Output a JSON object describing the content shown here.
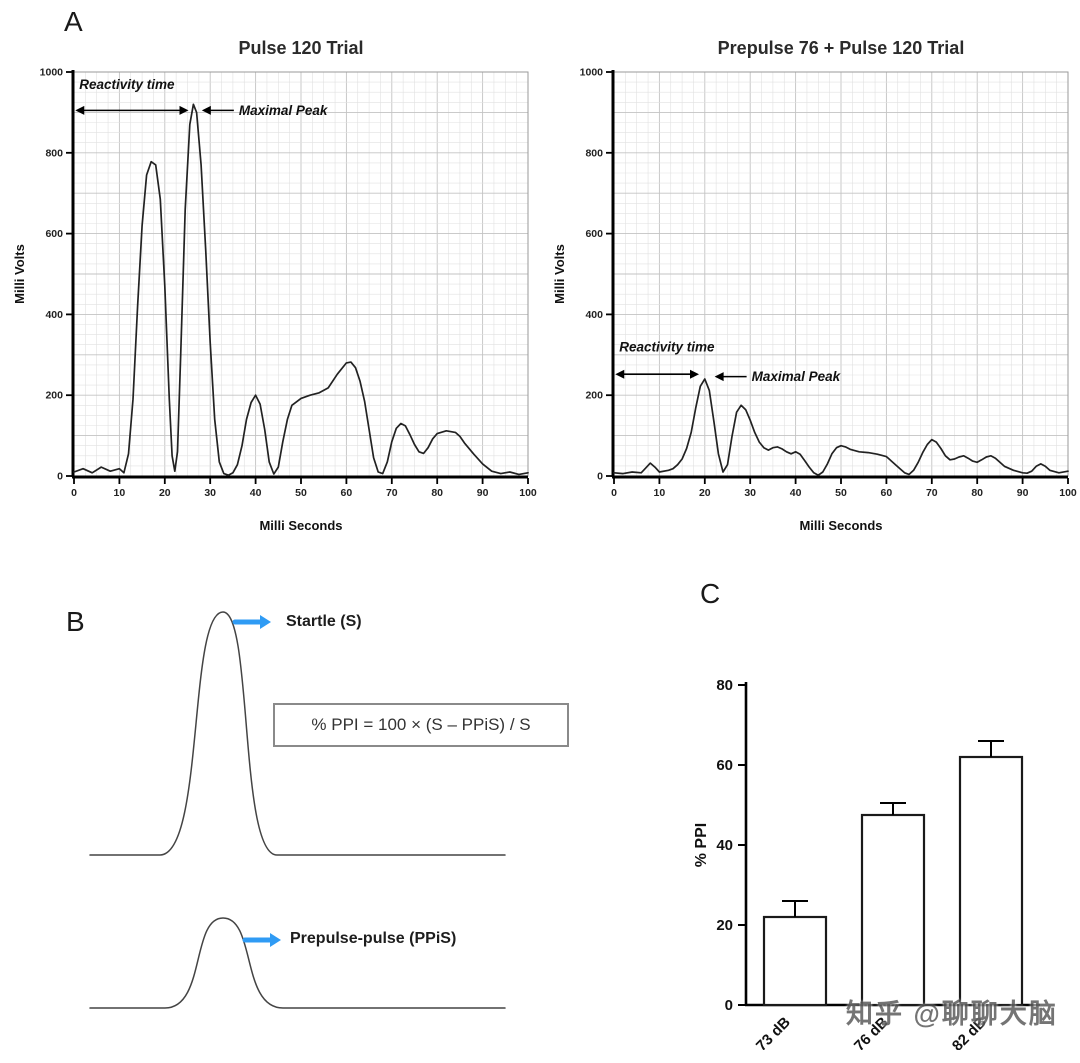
{
  "panels": {
    "a_label": "A",
    "b_label": "B",
    "c_label": "C"
  },
  "chart_data": [
    {
      "id": "pulse-120-trial",
      "type": "line",
      "title": "Pulse 120 Trial",
      "xlabel": "Milli Seconds",
      "ylabel": "Milli Volts",
      "xlim": [
        0,
        100
      ],
      "ylim": [
        0,
        1000
      ],
      "xticks": [
        0,
        10,
        20,
        30,
        40,
        50,
        60,
        70,
        80,
        90,
        100
      ],
      "yticks": [
        0,
        200,
        400,
        600,
        800,
        1000
      ],
      "grid": true,
      "points": [
        [
          0,
          10
        ],
        [
          2,
          18
        ],
        [
          4,
          8
        ],
        [
          6,
          22
        ],
        [
          8,
          12
        ],
        [
          10,
          18
        ],
        [
          11,
          8
        ],
        [
          12,
          55
        ],
        [
          13,
          190
        ],
        [
          14,
          420
        ],
        [
          15,
          620
        ],
        [
          16,
          745
        ],
        [
          17,
          778
        ],
        [
          18,
          770
        ],
        [
          19,
          685
        ],
        [
          20,
          470
        ],
        [
          21,
          190
        ],
        [
          21.6,
          50
        ],
        [
          22.2,
          12
        ],
        [
          22.8,
          60
        ],
        [
          23.5,
          300
        ],
        [
          24.5,
          660
        ],
        [
          25.5,
          870
        ],
        [
          26.3,
          920
        ],
        [
          27,
          900
        ],
        [
          28,
          770
        ],
        [
          29,
          560
        ],
        [
          30,
          330
        ],
        [
          31,
          140
        ],
        [
          32,
          35
        ],
        [
          33,
          6
        ],
        [
          34,
          2
        ],
        [
          35,
          8
        ],
        [
          36,
          28
        ],
        [
          37,
          75
        ],
        [
          38,
          140
        ],
        [
          39,
          182
        ],
        [
          40,
          200
        ],
        [
          41,
          178
        ],
        [
          42,
          115
        ],
        [
          43,
          35
        ],
        [
          44,
          5
        ],
        [
          45,
          22
        ],
        [
          46,
          85
        ],
        [
          47,
          140
        ],
        [
          48,
          175
        ],
        [
          50,
          192
        ],
        [
          52,
          200
        ],
        [
          54,
          206
        ],
        [
          56,
          218
        ],
        [
          58,
          252
        ],
        [
          60,
          280
        ],
        [
          61,
          282
        ],
        [
          62,
          268
        ],
        [
          63,
          235
        ],
        [
          64,
          185
        ],
        [
          65,
          115
        ],
        [
          66,
          45
        ],
        [
          67,
          10
        ],
        [
          68,
          6
        ],
        [
          69,
          35
        ],
        [
          70,
          85
        ],
        [
          71,
          118
        ],
        [
          72,
          130
        ],
        [
          73,
          124
        ],
        [
          74,
          102
        ],
        [
          75,
          78
        ],
        [
          76,
          60
        ],
        [
          77,
          56
        ],
        [
          78,
          70
        ],
        [
          79,
          92
        ],
        [
          80,
          105
        ],
        [
          82,
          112
        ],
        [
          84,
          108
        ],
        [
          85,
          98
        ],
        [
          86,
          82
        ],
        [
          88,
          55
        ],
        [
          90,
          30
        ],
        [
          92,
          12
        ],
        [
          94,
          6
        ],
        [
          96,
          10
        ],
        [
          98,
          4
        ],
        [
          100,
          8
        ]
      ],
      "annotations": {
        "reactivity": {
          "label": "Reactivity time",
          "x1": 0.5,
          "x2": 25,
          "y": 905,
          "label_y": 958
        },
        "peak": {
          "label": "Maximal Peak",
          "x": 27.5,
          "y": 905
        }
      }
    },
    {
      "id": "prepulse-76-pulse-120-trial",
      "type": "line",
      "title": "Prepulse 76 + Pulse 120 Trial",
      "xlabel": "Milli Seconds",
      "ylabel": "Milli Volts",
      "xlim": [
        0,
        100
      ],
      "ylim": [
        0,
        1000
      ],
      "xticks": [
        0,
        10,
        20,
        30,
        40,
        50,
        60,
        70,
        80,
        90,
        100
      ],
      "yticks": [
        0,
        200,
        400,
        600,
        800,
        1000
      ],
      "grid": true,
      "points": [
        [
          0,
          8
        ],
        [
          2,
          6
        ],
        [
          4,
          10
        ],
        [
          6,
          8
        ],
        [
          7,
          20
        ],
        [
          8,
          32
        ],
        [
          9,
          22
        ],
        [
          10,
          10
        ],
        [
          12,
          14
        ],
        [
          13,
          18
        ],
        [
          14,
          28
        ],
        [
          15,
          42
        ],
        [
          16,
          68
        ],
        [
          17,
          108
        ],
        [
          18,
          168
        ],
        [
          19,
          222
        ],
        [
          20,
          240
        ],
        [
          21,
          212
        ],
        [
          22,
          135
        ],
        [
          23,
          55
        ],
        [
          24,
          10
        ],
        [
          25,
          28
        ],
        [
          26,
          98
        ],
        [
          27,
          158
        ],
        [
          28,
          175
        ],
        [
          29,
          164
        ],
        [
          30,
          138
        ],
        [
          31,
          108
        ],
        [
          32,
          84
        ],
        [
          33,
          70
        ],
        [
          34,
          64
        ],
        [
          35,
          70
        ],
        [
          36,
          72
        ],
        [
          37,
          67
        ],
        [
          38,
          60
        ],
        [
          39,
          55
        ],
        [
          40,
          60
        ],
        [
          41,
          54
        ],
        [
          42,
          38
        ],
        [
          43,
          22
        ],
        [
          44,
          8
        ],
        [
          45,
          2
        ],
        [
          46,
          10
        ],
        [
          47,
          30
        ],
        [
          48,
          55
        ],
        [
          49,
          70
        ],
        [
          50,
          75
        ],
        [
          51,
          72
        ],
        [
          52,
          66
        ],
        [
          54,
          60
        ],
        [
          56,
          58
        ],
        [
          58,
          54
        ],
        [
          60,
          48
        ],
        [
          61,
          38
        ],
        [
          62,
          28
        ],
        [
          63,
          18
        ],
        [
          64,
          8
        ],
        [
          65,
          4
        ],
        [
          66,
          14
        ],
        [
          67,
          34
        ],
        [
          68,
          58
        ],
        [
          69,
          78
        ],
        [
          70,
          90
        ],
        [
          71,
          84
        ],
        [
          72,
          68
        ],
        [
          73,
          50
        ],
        [
          74,
          40
        ],
        [
          75,
          42
        ],
        [
          76,
          47
        ],
        [
          77,
          50
        ],
        [
          78,
          44
        ],
        [
          79,
          37
        ],
        [
          80,
          34
        ],
        [
          81,
          40
        ],
        [
          82,
          47
        ],
        [
          83,
          50
        ],
        [
          84,
          44
        ],
        [
          85,
          34
        ],
        [
          86,
          24
        ],
        [
          88,
          14
        ],
        [
          90,
          8
        ],
        [
          91,
          7
        ],
        [
          92,
          12
        ],
        [
          93,
          24
        ],
        [
          94,
          30
        ],
        [
          95,
          24
        ],
        [
          96,
          14
        ],
        [
          98,
          8
        ],
        [
          100,
          12
        ]
      ],
      "annotations": {
        "reactivity": {
          "label": "Reactivity time",
          "x1": 0.5,
          "x2": 18.5,
          "y": 252,
          "label_y": 308
        },
        "peak": {
          "label": "Maximal Peak",
          "x": 21.5,
          "y": 246
        }
      }
    },
    {
      "id": "ppi-bar-chart",
      "type": "bar",
      "title": "",
      "xlabel": "",
      "ylabel": "% PPI",
      "ylim": [
        0,
        80
      ],
      "yticks": [
        0,
        20,
        40,
        60,
        80
      ],
      "categories": [
        "73 dB",
        "76 dB",
        "82 dB"
      ],
      "values": [
        22,
        47.5,
        62
      ],
      "errors": [
        4,
        3,
        4
      ],
      "bar_fill": "#ffffff",
      "bar_stroke": "#1a1a1a"
    }
  ],
  "panel_b": {
    "startle_label": "Startle (S)",
    "ppis_label": "Prepulse-pulse (PPiS)",
    "formula": "% PPI = 100 × (S – PPiS) / S",
    "arrow_color": "#2f9bf4",
    "curve_color": "#444444"
  },
  "watermark": "知乎 @聊聊大脑"
}
